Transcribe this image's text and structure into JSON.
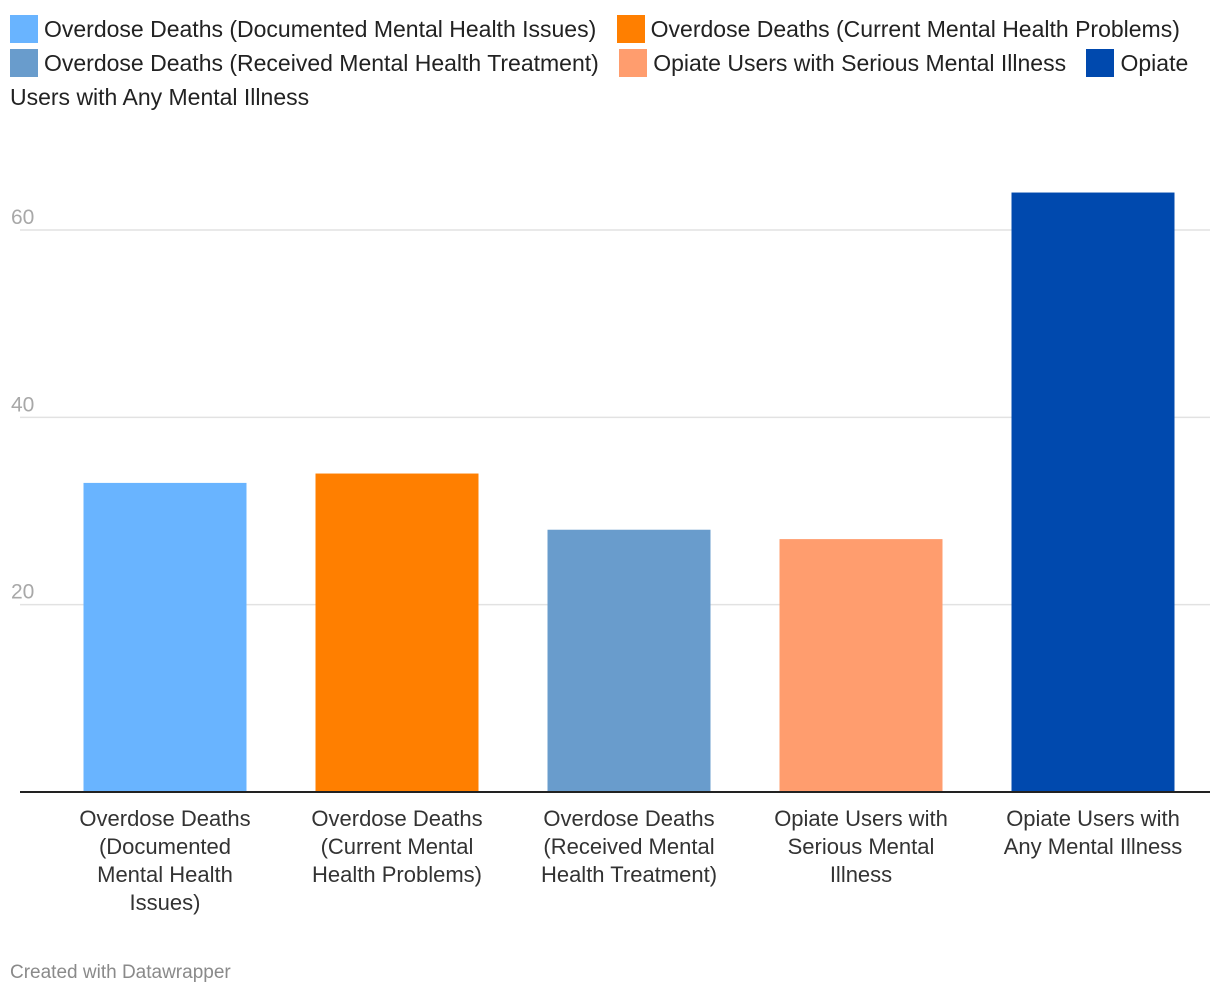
{
  "chart_data": {
    "type": "bar",
    "title": "",
    "xlabel": "",
    "ylabel": "",
    "ylim": [
      0,
      70
    ],
    "yticks": [
      20,
      40,
      60
    ],
    "categories": [
      "Overdose Deaths (Documented Mental Health Issues)",
      "Overdose Deaths (Current Mental Health Problems)",
      "Overdose Deaths (Received Mental Health Treatment)",
      "Opiate Users with Serious Mental Illness",
      "Opiate Users with Any Mental Illness"
    ],
    "category_label_lines": [
      [
        "Overdose Deaths",
        "(Documented",
        "Mental Health",
        "Issues)"
      ],
      [
        "Overdose Deaths",
        "(Current Mental",
        "Health Problems)"
      ],
      [
        "Overdose Deaths",
        "(Received Mental",
        "Health Treatment)"
      ],
      [
        "Opiate Users with",
        "Serious Mental",
        "Illness"
      ],
      [
        "Opiate Users with",
        "Any Mental Illness"
      ]
    ],
    "values": [
      33,
      34,
      28,
      27,
      64
    ],
    "colors": [
      "#69b4ff",
      "#ff7f00",
      "#699ccc",
      "#ff9d6e",
      "#0049ae"
    ],
    "legend": [
      "Overdose Deaths (Documented Mental Health Issues)",
      "Overdose Deaths (Current Mental Health Problems)",
      "Overdose Deaths (Received Mental Health Treatment)",
      "Opiate Users with Serious Mental Illness",
      "Opiate Users with Any Mental Illness"
    ],
    "grid": true
  },
  "credit": "Created with Datawrapper"
}
